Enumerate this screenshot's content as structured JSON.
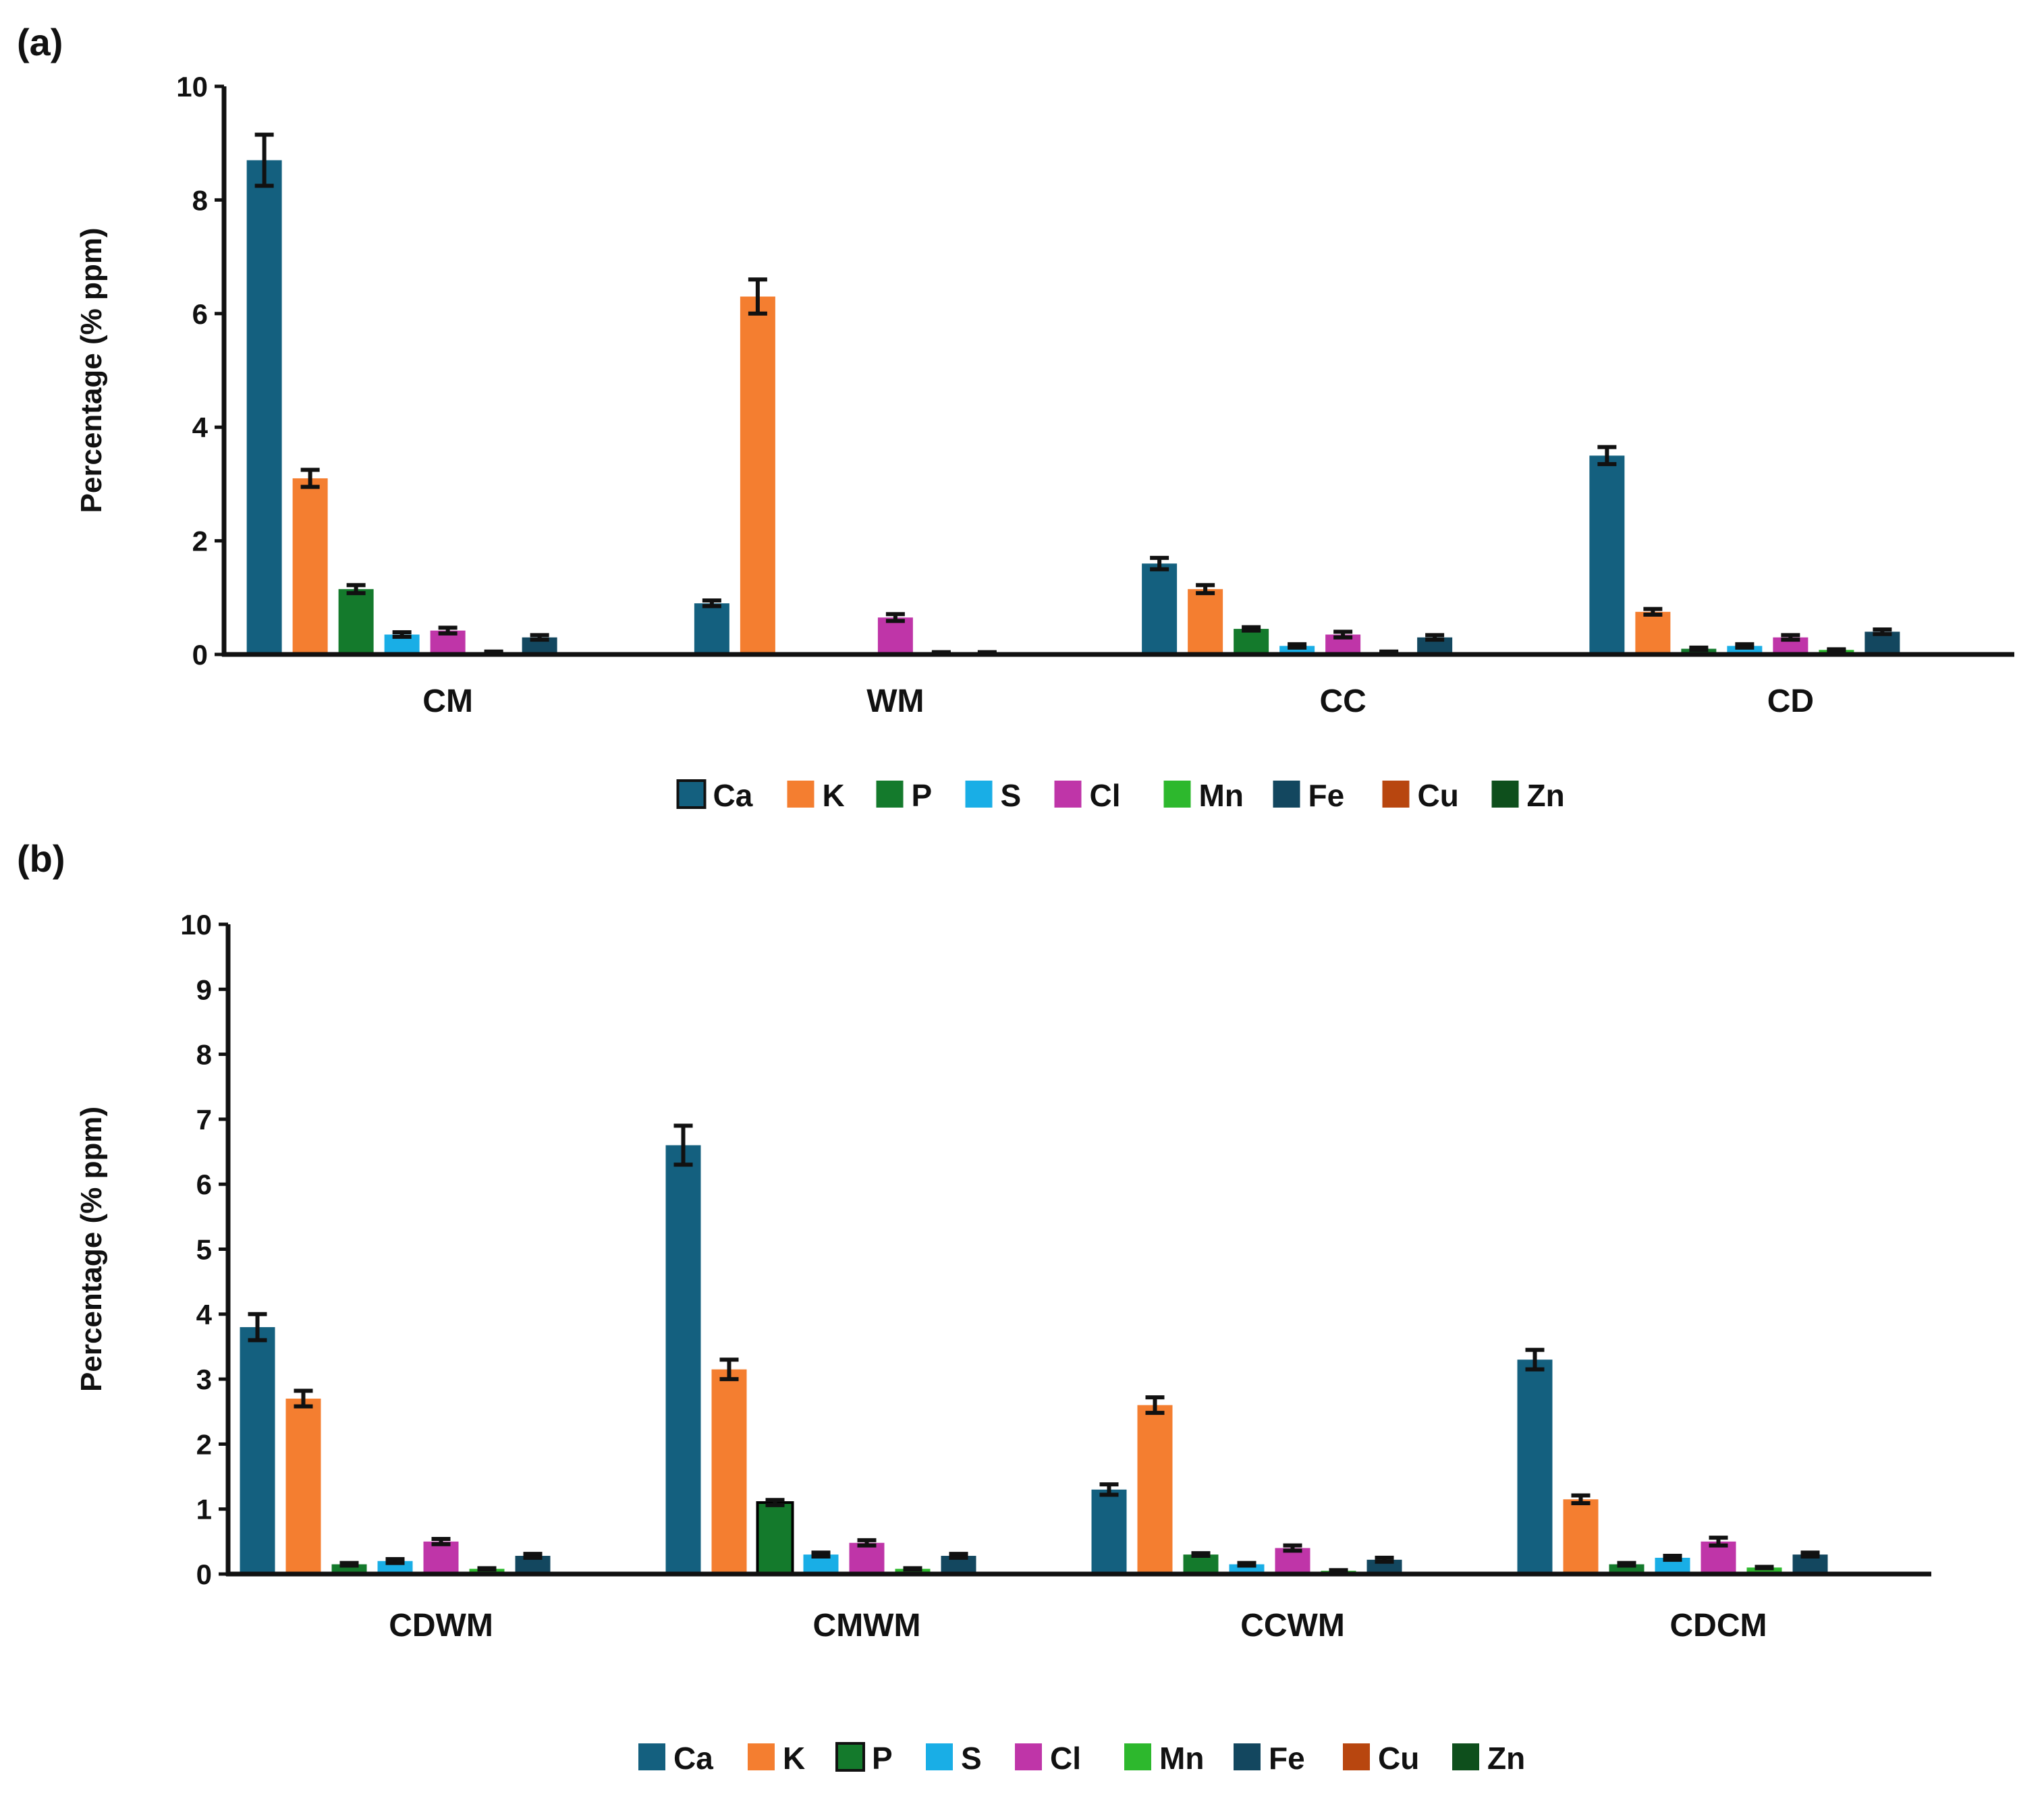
{
  "series_colors": {
    "Ca": "#14607F",
    "K": "#F47E30",
    "P": "#147A2C",
    "S": "#19AEE6",
    "Cl": "#BF35A8",
    "Mn": "#2DB82D",
    "Fe": "#13475F",
    "Cu": "#B8460F",
    "Zn": "#0E4F1C"
  },
  "chart_data": [
    {
      "panel": "(a)",
      "type": "bar",
      "ylabel": "Percentage (% ppm)",
      "ylim": [
        0,
        10
      ],
      "yticks": [
        0,
        2,
        4,
        6,
        8,
        10
      ],
      "categories": [
        "CM",
        "WM",
        "CC",
        "CD"
      ],
      "legend_position": "bottom-center",
      "series": [
        {
          "name": "Ca",
          "values": [
            8.7,
            0.9,
            1.6,
            3.5
          ],
          "errors": [
            0.45,
            0.05,
            0.1,
            0.15
          ]
        },
        {
          "name": "K",
          "values": [
            3.1,
            6.3,
            1.15,
            0.75
          ],
          "errors": [
            0.15,
            0.3,
            0.07,
            0.05
          ]
        },
        {
          "name": "P",
          "values": [
            1.15,
            0.0,
            0.45,
            0.1
          ],
          "errors": [
            0.07,
            0.0,
            0.03,
            0.02
          ]
        },
        {
          "name": "S",
          "values": [
            0.35,
            0.0,
            0.15,
            0.15
          ],
          "errors": [
            0.04,
            0.0,
            0.03,
            0.03
          ]
        },
        {
          "name": "Cl",
          "values": [
            0.42,
            0.65,
            0.35,
            0.3
          ],
          "errors": [
            0.05,
            0.06,
            0.05,
            0.04
          ]
        },
        {
          "name": "Mn",
          "values": [
            0.04,
            0.03,
            0.04,
            0.08
          ],
          "errors": [
            0.01,
            0.01,
            0.01,
            0.01
          ]
        },
        {
          "name": "Fe",
          "values": [
            0.3,
            0.03,
            0.3,
            0.4
          ],
          "errors": [
            0.04,
            0.01,
            0.04,
            0.04
          ]
        },
        {
          "name": "Cu",
          "values": [
            0.0,
            0.0,
            0.0,
            0.0
          ],
          "errors": [
            0,
            0,
            0,
            0
          ]
        },
        {
          "name": "Zn",
          "values": [
            0.0,
            0.0,
            0.0,
            0.0
          ],
          "errors": [
            0,
            0,
            0,
            0
          ]
        }
      ]
    },
    {
      "panel": "(b)",
      "type": "bar",
      "ylabel": "Percentage (% ppm)",
      "ylim": [
        0,
        10
      ],
      "yticks": [
        0,
        1,
        2,
        3,
        4,
        5,
        6,
        7,
        8,
        9,
        10
      ],
      "categories": [
        "CDWM",
        "CMWM",
        "CCWM",
        "CDCM"
      ],
      "legend_position": "bottom-center",
      "series": [
        {
          "name": "Ca",
          "values": [
            3.8,
            6.6,
            1.3,
            3.3
          ],
          "errors": [
            0.2,
            0.3,
            0.08,
            0.15
          ]
        },
        {
          "name": "K",
          "values": [
            2.7,
            3.15,
            2.6,
            1.15
          ],
          "errors": [
            0.12,
            0.15,
            0.12,
            0.06
          ]
        },
        {
          "name": "P",
          "values": [
            0.15,
            1.1,
            0.3,
            0.15
          ],
          "errors": [
            0.02,
            0.04,
            0.02,
            0.02
          ]
        },
        {
          "name": "S",
          "values": [
            0.2,
            0.3,
            0.15,
            0.25
          ],
          "errors": [
            0.03,
            0.03,
            0.02,
            0.03
          ]
        },
        {
          "name": "Cl",
          "values": [
            0.5,
            0.48,
            0.4,
            0.5
          ],
          "errors": [
            0.04,
            0.04,
            0.04,
            0.06
          ]
        },
        {
          "name": "Mn",
          "values": [
            0.08,
            0.08,
            0.05,
            0.1
          ],
          "errors": [
            0.01,
            0.01,
            0.01,
            0.01
          ]
        },
        {
          "name": "Fe",
          "values": [
            0.28,
            0.28,
            0.22,
            0.3
          ],
          "errors": [
            0.03,
            0.03,
            0.03,
            0.03
          ]
        },
        {
          "name": "Cu",
          "values": [
            0.0,
            0.0,
            0.0,
            0.0
          ],
          "errors": [
            0,
            0,
            0,
            0
          ]
        },
        {
          "name": "Zn",
          "values": [
            0.0,
            0.0,
            0.0,
            0.0
          ],
          "errors": [
            0,
            0,
            0,
            0
          ]
        }
      ]
    }
  ]
}
